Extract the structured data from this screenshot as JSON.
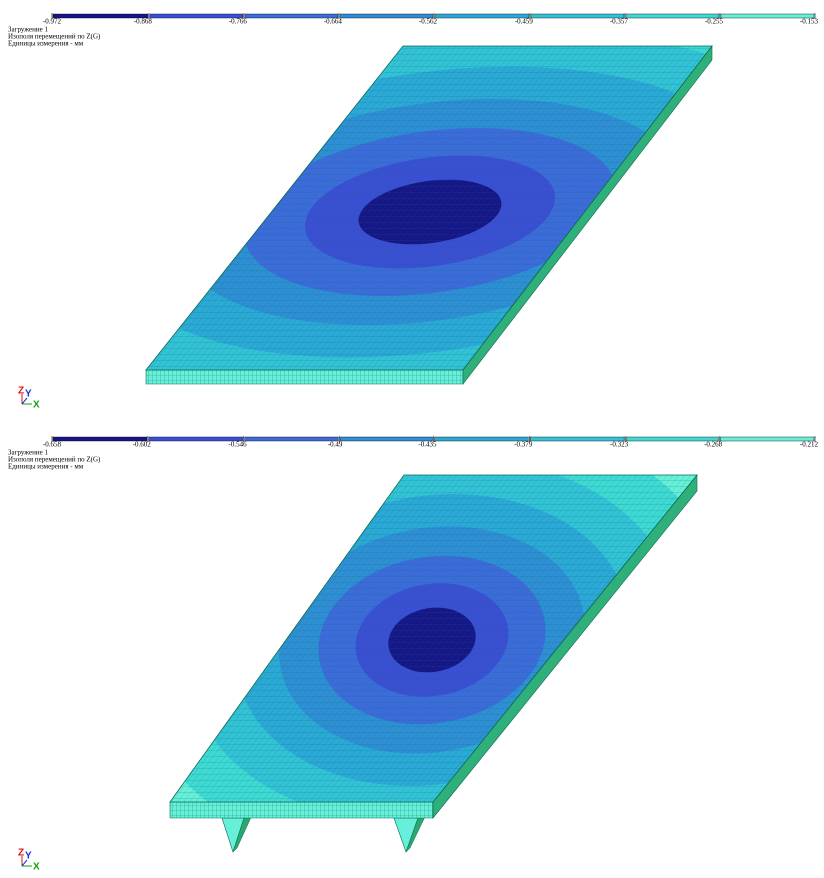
{
  "panels": [
    {
      "legend": {
        "ticks": [
          -0.972,
          -0.868,
          -0.766,
          -0.664,
          -0.562,
          -0.459,
          -0.357,
          -0.255,
          -0.153
        ],
        "colors": [
          "#16168a",
          "#3b4fd6",
          "#3c6cdc",
          "#2e8fd6",
          "#2ba9d8",
          "#33c3d8",
          "#3fdad6",
          "#66f0da"
        ]
      },
      "info": [
        "Загружение 1",
        "Изополя перемещений по Z(G)",
        "Единицы измерения - мм"
      ],
      "axes": [
        "Z",
        "Y",
        "X"
      ]
    },
    {
      "legend": {
        "ticks": [
          -0.658,
          -0.602,
          -0.546,
          -0.49,
          -0.435,
          -0.379,
          -0.323,
          -0.268,
          -0.212
        ],
        "colors": [
          "#16168a",
          "#3b4fd6",
          "#3c6cdc",
          "#2e8fd6",
          "#2ba9d8",
          "#33c3d8",
          "#3fdad6",
          "#66f0da"
        ]
      },
      "info": [
        "Загружение 1",
        "Изополя перемещений по Z(G)",
        "Единицы измерения - мм"
      ],
      "axes": [
        "Z",
        "Y",
        "X"
      ]
    }
  ]
}
